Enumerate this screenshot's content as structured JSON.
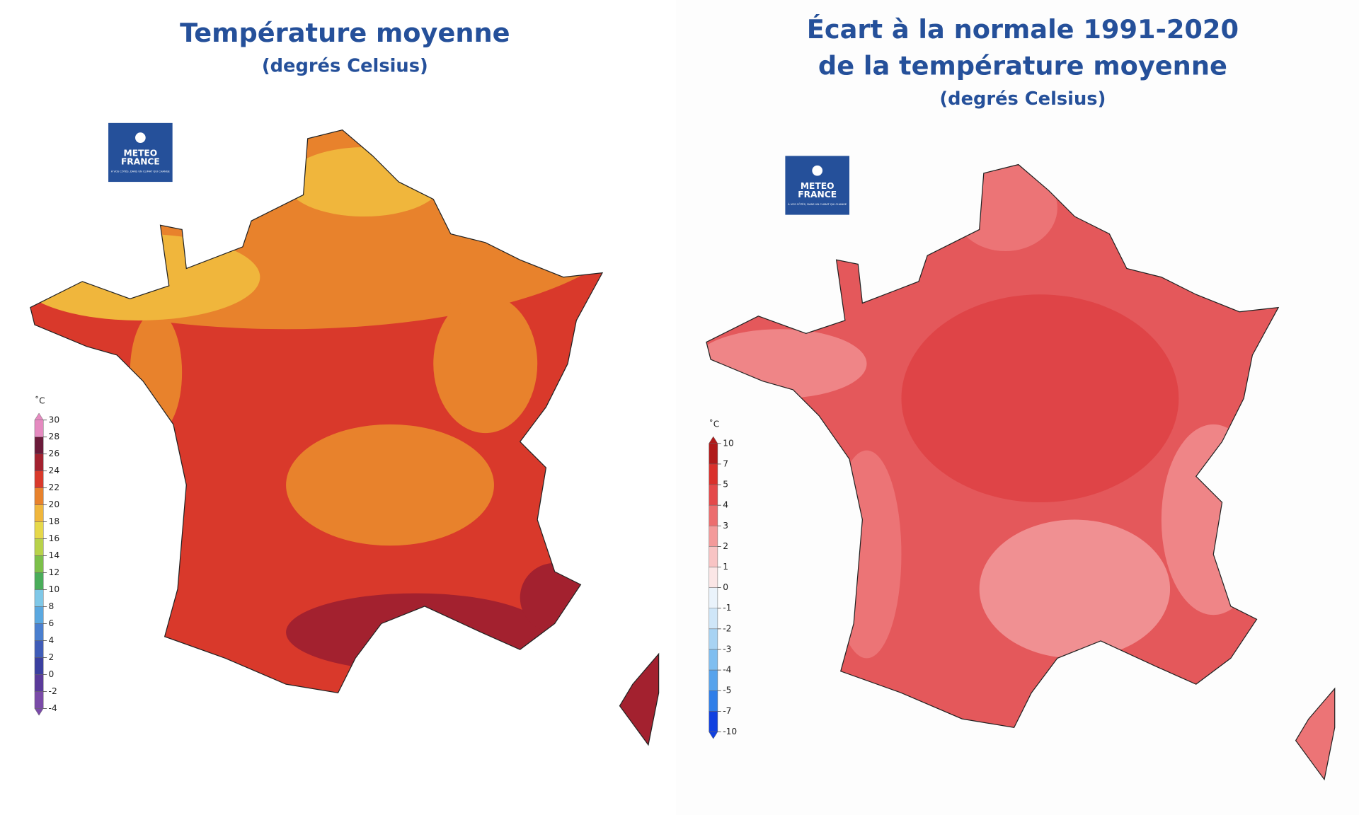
{
  "maps": [
    {
      "title": "Température moyenne",
      "subtitle": "(degrés Celsius)",
      "logo": {
        "line1": "METEO",
        "line2": "FRANCE",
        "tagline": "À VOS CÔTÉS, DANS UN CLIMAT QUI CHANGE"
      },
      "legend": {
        "unit": "˚C",
        "ticks": [
          30,
          28,
          26,
          24,
          22,
          20,
          18,
          16,
          14,
          12,
          10,
          8,
          6,
          4,
          2,
          0,
          -2,
          -4
        ],
        "colors": [
          "#e58ac0",
          "#6b1a3a",
          "#a3212f",
          "#d9392b",
          "#e8822c",
          "#f0b63c",
          "#e6d84a",
          "#b8d24a",
          "#7cc04a",
          "#4aad5a",
          "#7fc8e8",
          "#5aa8e0",
          "#4a7fcf",
          "#3f5cb8",
          "#3b3fa0",
          "#5a3a9a",
          "#7a4aa8"
        ]
      }
    },
    {
      "title": "Écart à la normale 1991-2020",
      "title2": "de la température moyenne",
      "subtitle": "(degrés Celsius)",
      "logo": {
        "line1": "METEO",
        "line2": "FRANCE",
        "tagline": "À VOS CÔTÉS, DANS UN CLIMAT QUI CHANGE"
      },
      "legend": {
        "unit": "˚C",
        "ticks": [
          10,
          7,
          5,
          4,
          3,
          2,
          1,
          0,
          -1,
          -2,
          -3,
          -4,
          -5,
          -7,
          -10
        ],
        "colors": [
          "#b01a1a",
          "#d9302b",
          "#e4494a",
          "#ec6d6e",
          "#f39a9a",
          "#f8c4c4",
          "#fbe6e6",
          "#eaf3fb",
          "#cfe6f8",
          "#a8d3f3",
          "#7fbef0",
          "#57a3ec",
          "#2f7ee8",
          "#1040e0"
        ]
      }
    }
  ]
}
